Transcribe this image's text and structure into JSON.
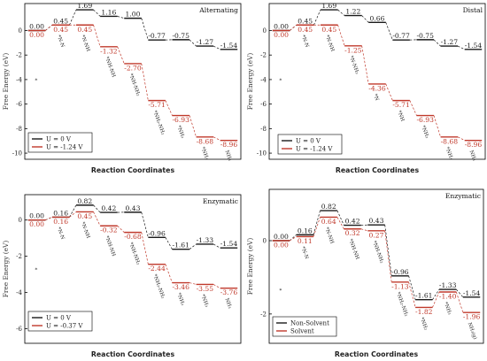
{
  "chart_data": [
    {
      "type": "line",
      "title": "Alternating",
      "xlabel": "Reaction Coordinates",
      "ylabel": "Free Energy (eV)",
      "ylim": [
        -10.5,
        2.2
      ],
      "yticks": [
        "0",
        "-2",
        "-4",
        "-6",
        "-8",
        "-10"
      ],
      "yticks_values": [
        0,
        -2,
        -4,
        -6,
        -8,
        -10
      ],
      "categories": [
        "*",
        "*N-N",
        "*N-NH",
        "*NH-NH",
        "*NH-NH₂",
        "*NH₂-NH₂",
        "*NH₂",
        "*NH₃",
        "NH₃"
      ],
      "colors": {
        "U = 0 V": "#1a1a1a",
        "U = -1.24 V": "#c0392b"
      },
      "legend_position": "bottom-left",
      "series": [
        {
          "name": "U = 0 V",
          "values": [
            0.0,
            0.45,
            1.69,
            1.16,
            1.0,
            -0.77,
            -0.75,
            -1.27,
            -1.54
          ],
          "labels": [
            "0.00",
            "0.45",
            "1.69",
            "1.16",
            "1.00",
            "-0.77",
            "-0.75",
            "-1.27",
            "-1.54"
          ]
        },
        {
          "name": "U = -1.24 V",
          "values": [
            0.0,
            0.45,
            0.45,
            -1.32,
            -2.7,
            -5.71,
            -6.93,
            -8.68,
            -8.96
          ],
          "labels": [
            "0.00",
            "0.45",
            "0.45",
            "-1.32",
            "-2.70",
            "-5.71",
            "-6.93",
            "-8.68",
            "-8.96"
          ]
        }
      ]
    },
    {
      "type": "line",
      "title": "Distal",
      "xlabel": "Reaction Coordinates",
      "ylabel": "Free Energy (eV)",
      "ylim": [
        -10.5,
        2.2
      ],
      "yticks": [
        "0",
        "-2",
        "-4",
        "-6",
        "-8",
        "-10"
      ],
      "yticks_values": [
        0,
        -2,
        -4,
        -6,
        -8,
        -10
      ],
      "categories": [
        "*",
        "*N-N",
        "*N-NH",
        "*N-NH₂",
        "*N",
        "*NH",
        "*NH₂",
        "*NH₃",
        "NH₃"
      ],
      "colors": {
        "U = 0 V": "#1a1a1a",
        "U = -1.24 V": "#c0392b"
      },
      "legend_position": "bottom-left",
      "series": [
        {
          "name": "U = 0 V",
          "values": [
            0.0,
            0.45,
            1.69,
            1.22,
            0.66,
            -0.77,
            -0.75,
            -1.27,
            -1.54
          ],
          "labels": [
            "0.00",
            "0.45",
            "1.69",
            "1.22",
            "0.66",
            "-0.77",
            "-0.75",
            "-1.27",
            "-1.54"
          ]
        },
        {
          "name": "U = -1.24 V",
          "values": [
            0.0,
            0.45,
            0.45,
            -1.25,
            -4.36,
            -5.71,
            -6.93,
            -8.68,
            -8.96
          ],
          "labels": [
            "0.00",
            "0.45",
            "0.45",
            "-1.25",
            "-4.36",
            "-5.71",
            "-6.93",
            "-8.68",
            "-8.96"
          ]
        }
      ]
    },
    {
      "type": "line",
      "title": "Enzymatic",
      "xlabel": "Reaction Coordinates",
      "ylabel": "Free Energy (eV)",
      "ylim": [
        -6.8,
        1.4
      ],
      "yticks": [
        "0",
        "-2",
        "-4",
        "-6"
      ],
      "yticks_values": [
        0,
        -2,
        -4,
        -6
      ],
      "categories": [
        "*",
        "*N-N",
        "*N-NH",
        "*NH-NH",
        "*NH-NH₂",
        "*NH₂-NH₂",
        "*NH₂",
        "*NH₃",
        "NH₃"
      ],
      "colors": {
        "U = 0 V": "#1a1a1a",
        "U = -0.37 V": "#c0392b"
      },
      "legend_position": "bottom-left",
      "series": [
        {
          "name": "U = 0 V",
          "values": [
            0.0,
            0.16,
            0.82,
            0.42,
            0.43,
            -0.96,
            -1.61,
            -1.33,
            -1.54
          ],
          "labels": [
            "0.00",
            "0.16",
            "0.82",
            "0.42",
            "0.43",
            "-0.96",
            "-1.61",
            "-1.33",
            "-1.54"
          ]
        },
        {
          "name": "U = -0.37 V",
          "values": [
            0.0,
            0.16,
            0.45,
            -0.32,
            -0.68,
            -2.44,
            -3.46,
            -3.55,
            -3.76
          ],
          "labels": [
            "0.00",
            "0.16",
            "0.45",
            "-0.32",
            "-0.68",
            "-2.44",
            "-3.46",
            "-3.55",
            "-3.76"
          ]
        }
      ]
    },
    {
      "type": "line",
      "title": "Enzymatic",
      "xlabel": "Reaction Coordinates",
      "ylabel": "Free Energy (eV)",
      "ylim": [
        -2.8,
        1.4
      ],
      "yticks": [
        "0",
        "-2"
      ],
      "yticks_values": [
        0,
        -2
      ],
      "categories": [
        "*",
        "*N-N",
        "*N-NH",
        "*NH-NH",
        "*NH-NH₂",
        "*NH₂-NH₂",
        "*NH₂",
        "*NH₃",
        "NH₃(g)"
      ],
      "colors": {
        "Non-Solvent": "#1a1a1a",
        "Solvent": "#c0392b"
      },
      "legend_position": "bottom-right",
      "series": [
        {
          "name": "Non-Solvent",
          "values": [
            0.0,
            0.16,
            0.82,
            0.42,
            0.43,
            -0.96,
            -1.61,
            -1.33,
            -1.54
          ],
          "labels": [
            "0.00",
            "0.16",
            "0.82",
            "0.42",
            "0.43",
            "-0.96",
            "-1.61",
            "-1.33",
            "-1.54"
          ]
        },
        {
          "name": "Solvent",
          "values": [
            0.0,
            0.11,
            0.64,
            0.32,
            0.27,
            -1.13,
            -1.82,
            -1.4,
            -1.96
          ],
          "labels": [
            "0.00",
            "0.11",
            "0.64",
            "0.32",
            "0.27",
            "-1.13",
            "-1.82",
            "-1.40",
            "-1.96"
          ]
        }
      ]
    }
  ]
}
